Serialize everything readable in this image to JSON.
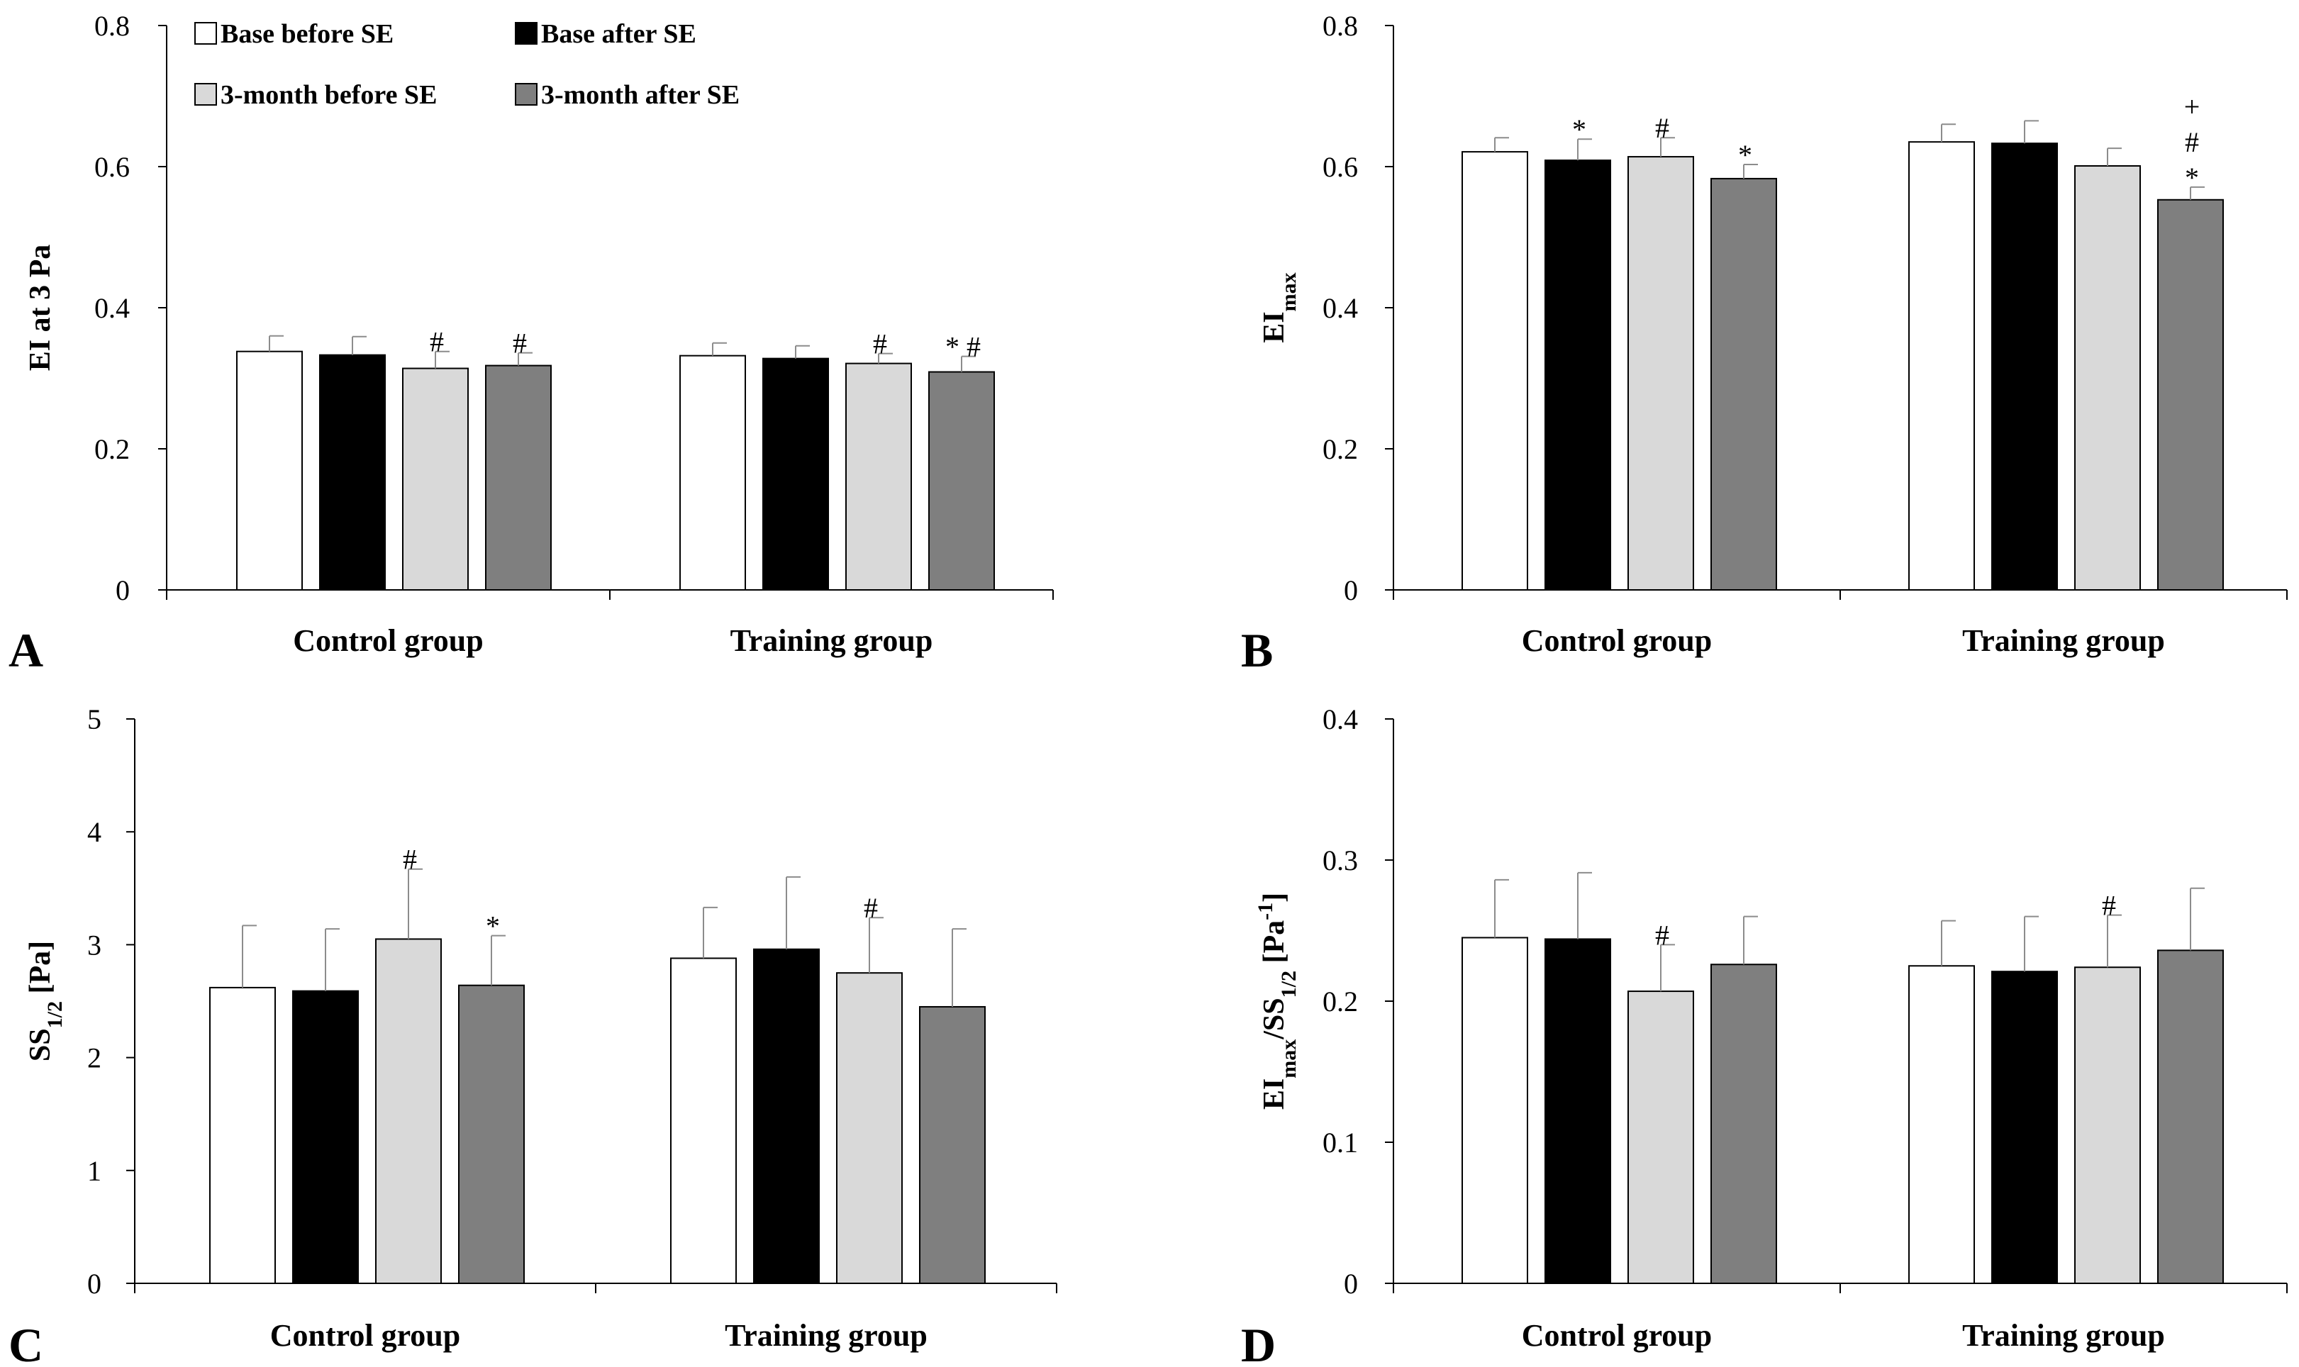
{
  "legend": {
    "items": [
      {
        "label": "Base before SE",
        "color": "#ffffff"
      },
      {
        "label": "Base after SE",
        "color": "#000000"
      },
      {
        "label": "3-month before SE",
        "color": "#d9d9d9"
      },
      {
        "label": "3-month after SE",
        "color": "#7f7f7f"
      }
    ]
  },
  "chart_data": [
    {
      "panel": "A",
      "type": "bar",
      "ylabel": "EI at 3 Pa",
      "ylim": [
        0,
        0.8
      ],
      "yticks": [
        "0",
        "0.2",
        "0.4",
        "0.6",
        "0.8"
      ],
      "categories": [
        "Control group",
        "Training group"
      ],
      "series": [
        {
          "name": "Base before SE",
          "values": [
            0.338,
            0.332
          ],
          "errors": [
            0.022,
            0.018
          ]
        },
        {
          "name": "Base after SE",
          "values": [
            0.333,
            0.328
          ],
          "errors": [
            0.026,
            0.018
          ]
        },
        {
          "name": "3-month before SE",
          "values": [
            0.314,
            0.321
          ],
          "errors": [
            0.024,
            0.014
          ]
        },
        {
          "name": "3-month after SE",
          "values": [
            0.318,
            0.309
          ],
          "errors": [
            0.018,
            0.022
          ]
        }
      ],
      "annotations": [
        {
          "group": 0,
          "series": 2,
          "marks": [
            "#"
          ]
        },
        {
          "group": 0,
          "series": 3,
          "marks": [
            "#"
          ]
        },
        {
          "group": 1,
          "series": 2,
          "marks": [
            "#"
          ]
        },
        {
          "group": 1,
          "series": 3,
          "marks": [
            "* #"
          ]
        }
      ]
    },
    {
      "panel": "B",
      "type": "bar",
      "ylabel": "EI",
      "ylabel_sub": "max",
      "ylim": [
        0,
        0.8
      ],
      "yticks": [
        "0",
        "0.2",
        "0.4",
        "0.6",
        "0.8"
      ],
      "categories": [
        "Control group",
        "Training group"
      ],
      "series": [
        {
          "name": "Base before SE",
          "values": [
            0.621,
            0.635
          ],
          "errors": [
            0.02,
            0.025
          ]
        },
        {
          "name": "Base after SE",
          "values": [
            0.609,
            0.633
          ],
          "errors": [
            0.03,
            0.032
          ]
        },
        {
          "name": "3-month before SE",
          "values": [
            0.614,
            0.601
          ],
          "errors": [
            0.027,
            0.025
          ]
        },
        {
          "name": "3-month after SE",
          "values": [
            0.583,
            0.553
          ],
          "errors": [
            0.02,
            0.018
          ]
        }
      ],
      "annotations": [
        {
          "group": 0,
          "series": 1,
          "marks": [
            "*"
          ]
        },
        {
          "group": 0,
          "series": 2,
          "marks": [
            "#"
          ]
        },
        {
          "group": 0,
          "series": 3,
          "marks": [
            "*"
          ]
        },
        {
          "group": 1,
          "series": 3,
          "marks": [
            "*",
            "#",
            "+"
          ]
        }
      ]
    },
    {
      "panel": "C",
      "type": "bar",
      "ylabel": "SS",
      "ylabel_sub": "1/2",
      "ylabel_suffix": " [Pa]",
      "ylim": [
        0,
        5
      ],
      "yticks": [
        "0",
        "1",
        "2",
        "3",
        "4",
        "5"
      ],
      "categories": [
        "Control group",
        "Training group"
      ],
      "series": [
        {
          "name": "Base before SE",
          "values": [
            2.62,
            2.88
          ],
          "errors": [
            0.55,
            0.45
          ]
        },
        {
          "name": "Base after SE",
          "values": [
            2.59,
            2.96
          ],
          "errors": [
            0.55,
            0.64
          ]
        },
        {
          "name": "3-month before SE",
          "values": [
            3.05,
            2.75
          ],
          "errors": [
            0.62,
            0.49
          ]
        },
        {
          "name": "3-month after SE",
          "values": [
            2.64,
            2.45
          ],
          "errors": [
            0.44,
            0.69
          ]
        }
      ],
      "annotations": [
        {
          "group": 0,
          "series": 2,
          "marks": [
            "#"
          ]
        },
        {
          "group": 0,
          "series": 3,
          "marks": [
            "*"
          ]
        },
        {
          "group": 1,
          "series": 2,
          "marks": [
            "#"
          ]
        }
      ]
    },
    {
      "panel": "D",
      "type": "bar",
      "ylabel": "EI",
      "ylabel_sub": "max",
      "ylabel_mid": "/SS",
      "ylabel_sub2": "1/2",
      "ylabel_suffix": " [Pa",
      "ylabel_sup": "-1",
      "ylabel_end": "]",
      "ylim": [
        0,
        0.4
      ],
      "yticks": [
        "0",
        "0.1",
        "0.2",
        "0.3",
        "0.4"
      ],
      "categories": [
        "Control group",
        "Training group"
      ],
      "series": [
        {
          "name": "Base before SE",
          "values": [
            0.245,
            0.225
          ],
          "errors": [
            0.041,
            0.032
          ]
        },
        {
          "name": "Base after SE",
          "values": [
            0.244,
            0.221
          ],
          "errors": [
            0.047,
            0.039
          ]
        },
        {
          "name": "3-month before SE",
          "values": [
            0.207,
            0.224
          ],
          "errors": [
            0.033,
            0.037
          ]
        },
        {
          "name": "3-month after SE",
          "values": [
            0.226,
            0.236
          ],
          "errors": [
            0.034,
            0.044
          ]
        }
      ],
      "annotations": [
        {
          "group": 0,
          "series": 2,
          "marks": [
            "#"
          ]
        },
        {
          "group": 1,
          "series": 2,
          "marks": [
            "#"
          ]
        }
      ]
    }
  ]
}
